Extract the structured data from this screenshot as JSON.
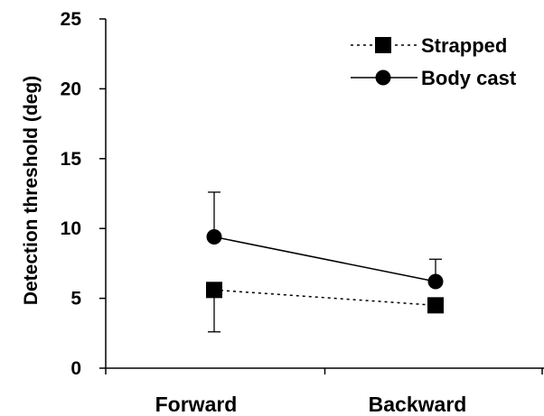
{
  "chart_data": {
    "type": "line",
    "categories": [
      "Forward",
      "Backward"
    ],
    "ylabel": "Detection threshold (deg)",
    "xlabel": "",
    "ylim": [
      0,
      25
    ],
    "yticks": [
      0,
      5,
      10,
      15,
      20,
      25
    ],
    "grid": false,
    "legend_position": "top-right",
    "series": [
      {
        "name": "Strapped",
        "marker": "square",
        "line_style": "dotted",
        "values": [
          5.6,
          4.5
        ],
        "error_minus": [
          3.0,
          0
        ],
        "error_plus": [
          0,
          0
        ]
      },
      {
        "name": "Body cast",
        "marker": "circle",
        "line_style": "solid",
        "values": [
          9.4,
          6.2
        ],
        "error_minus": [
          0,
          0
        ],
        "error_plus": [
          3.2,
          1.6
        ]
      }
    ],
    "colors": {
      "series": "#000000",
      "axis": "#000000"
    }
  }
}
